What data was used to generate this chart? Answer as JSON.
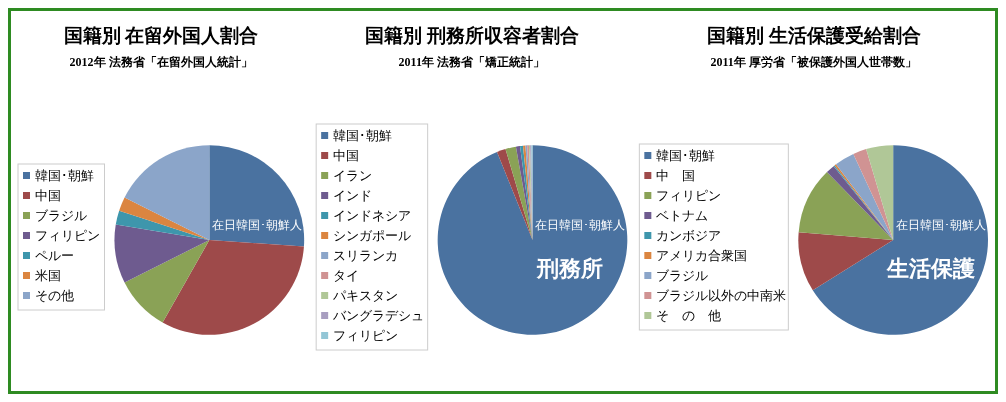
{
  "chart_data": [
    {
      "type": "pie",
      "title": "国籍別 在留外国人割合",
      "subtitle": "2012年 法務省「在留外国人統計」",
      "categories": [
        "韓国･朝鮮",
        "中国",
        "ブラジル",
        "フィリピン",
        "ペルー",
        "米国",
        "その他"
      ],
      "values": [
        26.1,
        32.1,
        9.4,
        10.0,
        2.4,
        2.4,
        17.6
      ],
      "colors": [
        "#4a72a0",
        "#9e4a4a",
        "#8aa256",
        "#6e5b8f",
        "#3e96ac",
        "#db8540",
        "#8ba5c9"
      ],
      "legend": "left",
      "annotations": [
        "在日韓国･朝鮮人"
      ]
    },
    {
      "type": "pie",
      "title": "国籍別 刑務所収容者割合",
      "subtitle": "2011年 法務省「矯正統計」",
      "categories": [
        "韓国･朝鮮",
        "中国",
        "イラン",
        "インド",
        "インドネシア",
        "シンガポール",
        "スリランカ",
        "タイ",
        "パキスタン",
        "バングラデシュ",
        "フィリピン"
      ],
      "values": [
        93.9,
        1.5,
        1.8,
        0.7,
        0.5,
        0.4,
        0.3,
        0.3,
        0.2,
        0.2,
        0.2
      ],
      "colors": [
        "#4a72a0",
        "#9e4a4a",
        "#8aa256",
        "#6e5b8f",
        "#3e96ac",
        "#db8540",
        "#8ba5c9",
        "#d09393",
        "#b0c797",
        "#a89ec0",
        "#93c6d6"
      ],
      "legend": "left",
      "annotations": [
        "在日韓国･朝鮮人",
        "刑務所"
      ]
    },
    {
      "type": "pie",
      "title": "国籍別 生活保護受給割合",
      "subtitle": "2011年 厚労省「被保護外国人世帯数」",
      "categories": [
        "韓国･朝鮮",
        "中　国",
        "フィリピン",
        "ベトナム",
        "カンボジア",
        "アメリカ合衆国",
        "ブラジル",
        "ブラジル以外の中南米",
        "そ　の　他"
      ],
      "values": [
        66.1,
        10.2,
        11.4,
        1.5,
        0.2,
        0.3,
        3.4,
        2.3,
        4.6
      ],
      "colors": [
        "#4a72a0",
        "#9e4a4a",
        "#8aa256",
        "#6e5b8f",
        "#3e96ac",
        "#db8540",
        "#8ba5c9",
        "#d09393",
        "#b0c797"
      ],
      "legend": "left",
      "annotations": [
        "在日韓国･朝鮮人",
        "生活保護"
      ]
    }
  ]
}
